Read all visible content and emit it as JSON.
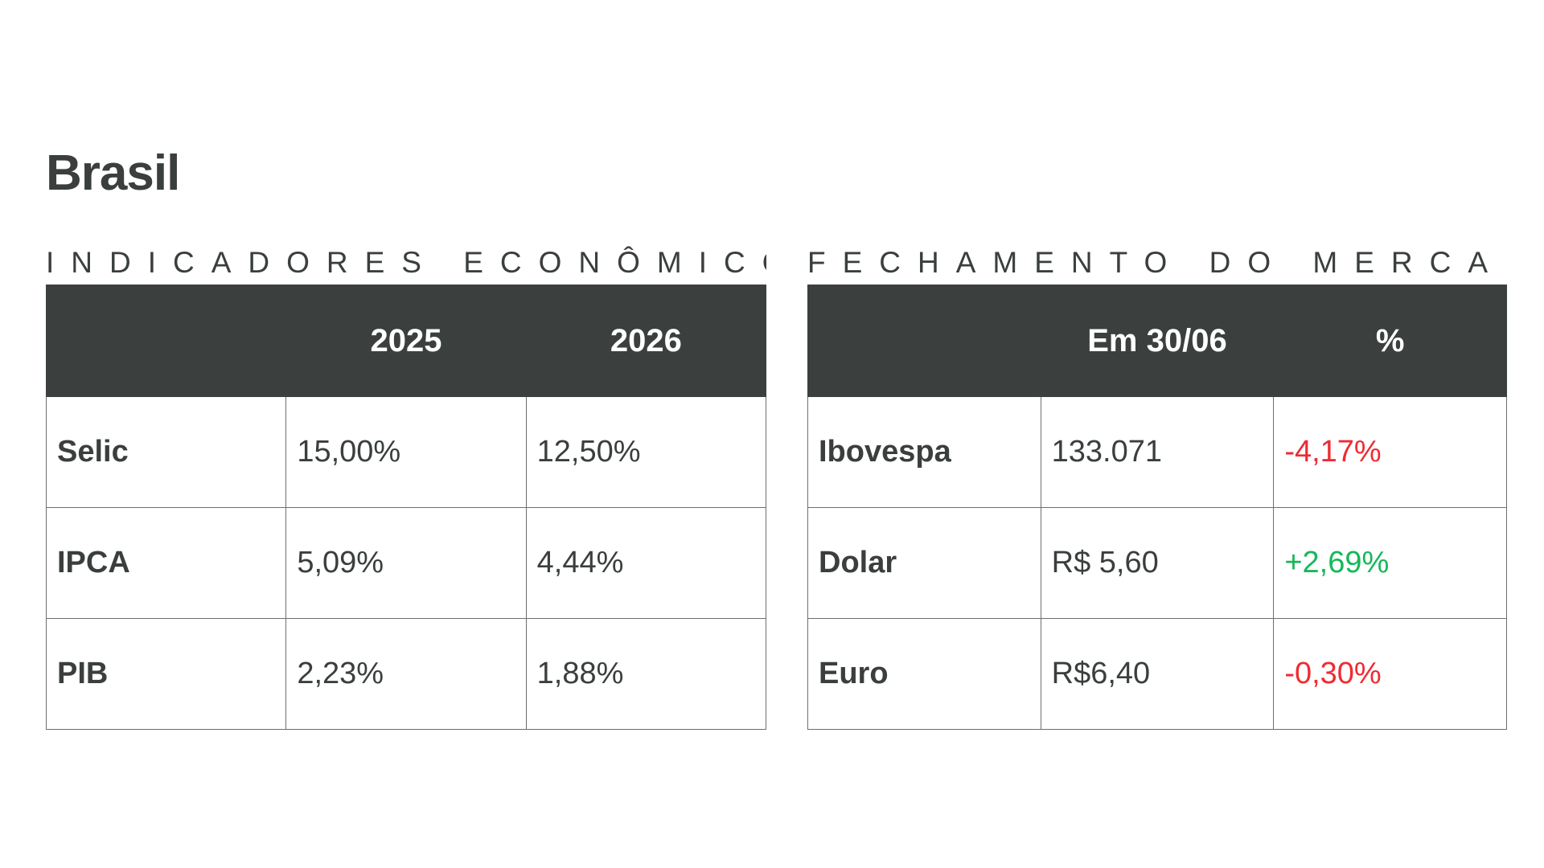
{
  "title": "Brasil",
  "indicators": {
    "heading": "INDICADORES ECONÔMICOS",
    "columns": [
      "",
      "2025",
      "2026"
    ],
    "rows": [
      {
        "label": "Selic",
        "v2025": "15,00%",
        "v2026": "12,50%"
      },
      {
        "label": "IPCA",
        "v2025": "5,09%",
        "v2026": "4,44%"
      },
      {
        "label": "PIB",
        "v2025": "2,23%",
        "v2026": "1,88%"
      }
    ]
  },
  "market": {
    "heading": "FECHAMENTO DO MERCADO",
    "columns": [
      "",
      "Em 30/06",
      "%"
    ],
    "rows": [
      {
        "label": "Ibovespa",
        "value": "133.071",
        "change": "-4,17%",
        "trend": "negative"
      },
      {
        "label": "Dolar",
        "value": "R$ 5,60",
        "change": "+2,69%",
        "trend": "positive"
      },
      {
        "label": "Euro",
        "value": "R$6,40",
        "change": "-0,30%",
        "trend": "negative"
      }
    ]
  },
  "colors": {
    "header_bg": "#3b403e",
    "text": "#3a3f3d",
    "negative": "#ee2b33",
    "positive": "#15b85a"
  }
}
